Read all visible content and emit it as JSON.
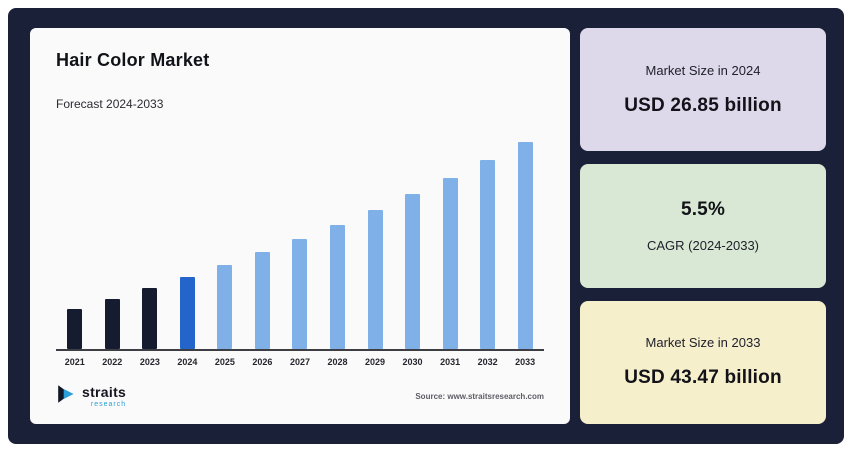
{
  "header": {
    "title": "Hair Color Market",
    "subtitle": "Forecast 2024-2033"
  },
  "chart_data": {
    "type": "bar",
    "title": "Hair Color Market",
    "subtitle": "Forecast 2024-2033",
    "categories": [
      "2021",
      "2022",
      "2023",
      "2024",
      "2025",
      "2026",
      "2027",
      "2028",
      "2029",
      "2030",
      "2031",
      "2032",
      "2033"
    ],
    "values": [
      22.87,
      24.12,
      25.45,
      26.85,
      28.33,
      29.88,
      31.53,
      33.26,
      35.09,
      37.02,
      39.06,
      41.21,
      43.47
    ],
    "unit": "USD billion",
    "bar_colors": [
      "#161c30",
      "#161c30",
      "#161c30",
      "#2465cb",
      "#7fb0e8",
      "#7fb0e8",
      "#7fb0e8",
      "#7fb0e8",
      "#7fb0e8",
      "#7fb0e8",
      "#7fb0e8",
      "#7fb0e8",
      "#7fb0e8"
    ],
    "xlabel": "",
    "ylabel": "",
    "y_axis_visible": false,
    "grid": false,
    "legend": false,
    "known_points": {
      "2024": "USD 26.85 billion",
      "2033": "USD 43.47 billion",
      "cagr_2024_2033": "5.5%"
    }
  },
  "cards": [
    {
      "label": "Market Size in 2024",
      "value": "USD 26.85 billion",
      "bg": "#ded9ea"
    },
    {
      "value": "5.5%",
      "label": "CAGR (2024-2033)",
      "bg": "#d8e8d4"
    },
    {
      "label": "Market Size in 2033",
      "value": "USD 43.47 billion",
      "bg": "#f6efcb"
    }
  ],
  "footer": {
    "logo_name": "straits",
    "logo_subtext": "research",
    "source": "Source: www.straitsresearch.com"
  },
  "colors": {
    "background_navy": "#1a2037",
    "panel": "#fafafa",
    "bar_historical": "#161c30",
    "bar_current": "#2465cb",
    "bar_forecast": "#7fb0e8",
    "logo_accent": "#2a9fd8"
  }
}
